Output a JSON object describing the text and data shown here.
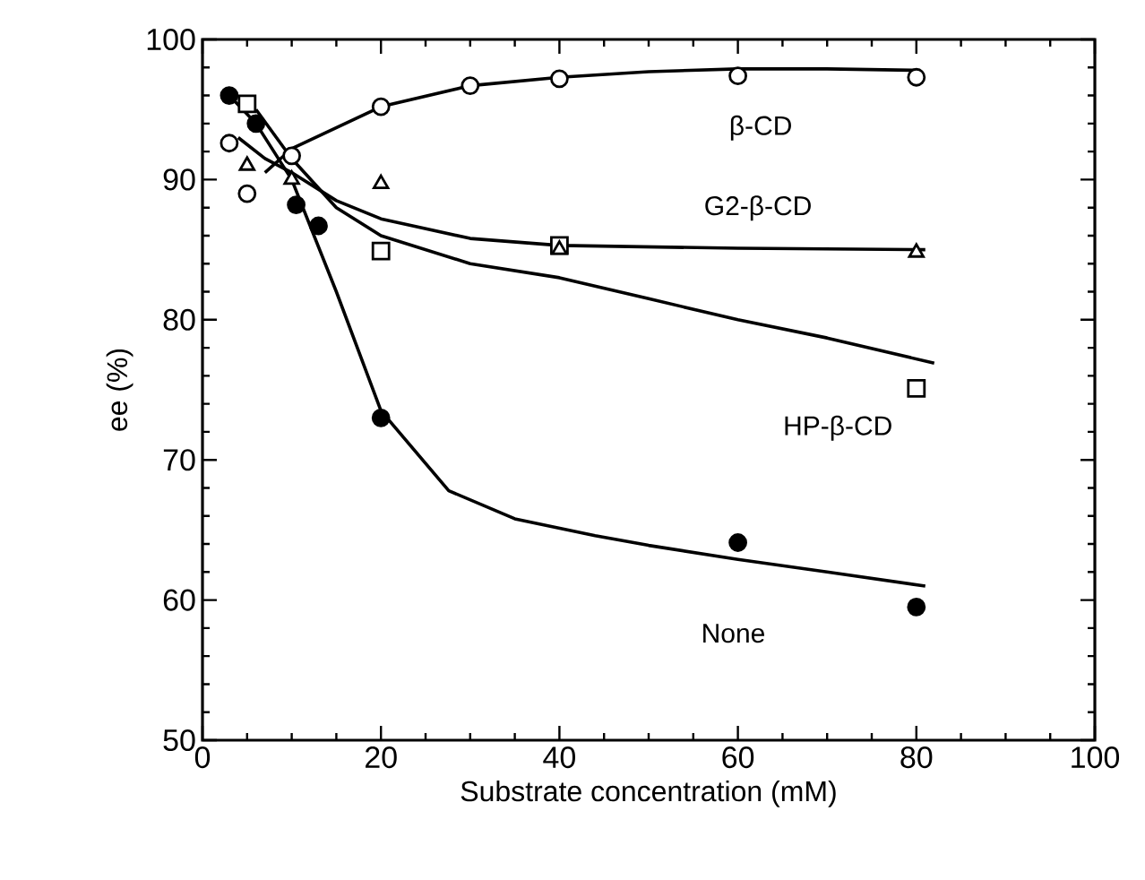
{
  "chart_data": {
    "type": "scatter",
    "xlabel": "Substrate concentration (mM)",
    "ylabel": "ee (%)",
    "xlim": [
      0,
      100
    ],
    "ylim": [
      50,
      100
    ],
    "xticks": [
      0,
      20,
      40,
      60,
      80,
      100
    ],
    "yticks": [
      50,
      60,
      70,
      80,
      90,
      100
    ],
    "grid": false,
    "series": [
      {
        "marker": "circle",
        "color": "#000000",
        "x": [
          3,
          6,
          10.5,
          13,
          20,
          60,
          80
        ],
        "values": [
          96,
          94,
          88.2,
          86.7,
          73,
          64.1,
          59.5
        ]
      },
      {
        "marker": "circle",
        "color": "#000000",
        "x": [
          3,
          5,
          10,
          20,
          30,
          40,
          60,
          80
        ],
        "values": [
          92.6,
          89,
          91.7,
          95.2,
          96.7,
          97.2,
          97.4,
          97.3
        ]
      },
      {
        "marker": "triangle",
        "color": "#000000",
        "x": [
          5,
          10,
          20,
          40,
          80
        ],
        "values": [
          91,
          90,
          89.7,
          85,
          84.8
        ]
      },
      {
        "marker": "square",
        "color": "#000000",
        "x": [
          5,
          20,
          40,
          80
        ],
        "values": [
          95.4,
          84.9,
          85.3,
          75.1
        ]
      },
      {
        "type": "line",
        "name": "None",
        "marker": "none",
        "line_style": "solid",
        "color": "#000000",
        "x": [
          3,
          6,
          10,
          15,
          20,
          27.6,
          35,
          44,
          50,
          60,
          70,
          81
        ],
        "values": [
          96,
          94,
          90,
          82,
          73.5,
          67.8,
          65.8,
          64.6,
          63.9,
          62.9,
          62,
          61
        ]
      },
      {
        "type": "line",
        "name": "β-CD",
        "marker": "none",
        "line_style": "solid",
        "color": "#000000",
        "x": [
          7,
          10,
          20,
          30,
          40,
          50,
          60,
          70,
          80
        ],
        "values": [
          90.5,
          92.2,
          95.2,
          96.7,
          97.3,
          97.7,
          97.9,
          97.9,
          97.8
        ]
      },
      {
        "type": "line",
        "name": "G2-β-CD",
        "marker": "none",
        "line_style": "solid",
        "color": "#000000",
        "x": [
          4,
          7,
          10,
          15,
          20,
          30,
          40,
          60,
          81
        ],
        "values": [
          93,
          91.5,
          90.5,
          88.5,
          87.2,
          85.8,
          85.3,
          85.1,
          85
        ]
      },
      {
        "type": "line",
        "name": "HP-β-CD",
        "marker": "none",
        "line_style": "solid",
        "color": "#000000",
        "x": [
          6,
          10,
          15,
          20,
          30,
          40,
          50,
          60,
          70,
          82
        ],
        "values": [
          95,
          91.5,
          88,
          86,
          84,
          83,
          81.5,
          80,
          78.7,
          76.9
        ]
      }
    ]
  }
}
